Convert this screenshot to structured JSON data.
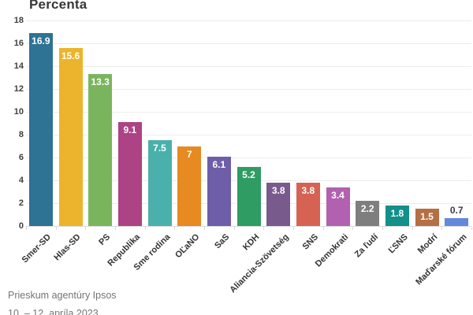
{
  "title": "Percenta",
  "footer": {
    "line1": "Prieskum agentúry Ipsos",
    "line2": "10. – 12. apríla 2023"
  },
  "colors": {
    "grid": "#ececec",
    "axis_line": "#dcdcdc",
    "tick_text": "#3f3f3f",
    "label_text": "#333333",
    "value_text_inside": "#ffffff",
    "value_text_outside": "#3d3d3d",
    "muted_text": "#757575"
  },
  "chart_data": {
    "type": "bar",
    "title": "Percenta",
    "xlabel": "",
    "ylabel": "",
    "ylim": [
      0,
      18
    ],
    "ytick_step": 2,
    "grid": "horizontal",
    "legend_position": "none",
    "categories": [
      "Smer-SD",
      "Hlas-SD",
      "PS",
      "Republika",
      "Sme rodina",
      "OĽaNO",
      "SaS",
      "KDH",
      "Aliancia-Szövetség",
      "SNS",
      "Demokrati",
      "Za ľudí",
      "ĽSNS",
      "Modrí",
      "Maďarské fórum"
    ],
    "values": [
      16.9,
      15.6,
      13.3,
      9.1,
      7.5,
      7,
      6.1,
      5.2,
      3.8,
      3.8,
      3.4,
      2.2,
      1.8,
      1.5,
      0.7
    ],
    "value_labels": [
      "16.9",
      "15.6",
      "13.3",
      "9.1",
      "7.5",
      "7",
      "6.1",
      "5.2",
      "3.8",
      "3.8",
      "3.4",
      "2.2",
      "1.8",
      "1.5",
      "0.7"
    ],
    "bar_colors": [
      "#2e7294",
      "#ecb42c",
      "#7ab55e",
      "#ad4384",
      "#49b0ab",
      "#e68a21",
      "#6e5ea8",
      "#2e9c63",
      "#795a8d",
      "#d66253",
      "#b161af",
      "#7e7e7e",
      "#129089",
      "#b56f44",
      "#6389da"
    ]
  }
}
